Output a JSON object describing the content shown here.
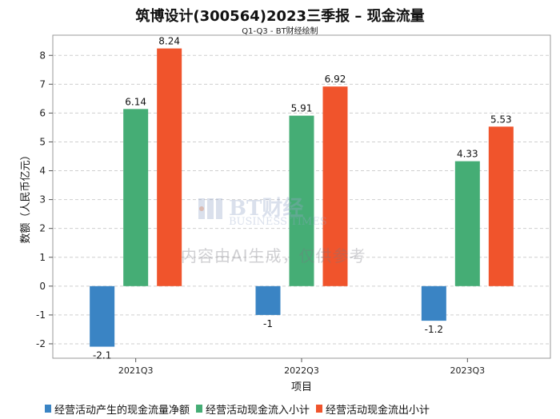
{
  "title": "筑博设计(300564)2023三季报 – 现金流量",
  "subtitle": "Q1-Q3 - BT财经绘制",
  "watermark": {
    "line1": "内容由AI生成，仅供参考",
    "brand": "BT财经",
    "brand_sub": "BUSINESS TIMES"
  },
  "colors": {
    "series1": "#3a84c4",
    "series2": "#45ad75",
    "series3": "#f0542c"
  },
  "chart_data": {
    "type": "bar",
    "title": "筑博设计(300564)2023三季报 – 现金流量",
    "subtitle": "Q1-Q3 - BT财经绘制",
    "xlabel": "项目",
    "ylabel": "数额（人民币亿元）",
    "categories": [
      "2021Q3",
      "2022Q3",
      "2023Q3"
    ],
    "ylim": [
      -2.5,
      8.7
    ],
    "yticks": [
      -2,
      -1,
      0,
      1,
      2,
      3,
      4,
      5,
      6,
      7,
      8
    ],
    "grid": true,
    "legend_position": "bottom",
    "series": [
      {
        "name": "经营活动产生的现金流量净额",
        "values": [
          -2.1,
          -1,
          -1.2
        ],
        "labels": [
          "-2.1",
          "-1",
          "-1.2"
        ]
      },
      {
        "name": "经营活动现金流入小计",
        "values": [
          6.14,
          5.91,
          4.33
        ],
        "labels": [
          "6.14",
          "5.91",
          "4.33"
        ]
      },
      {
        "name": "经营活动现金流出小计",
        "values": [
          8.24,
          6.92,
          5.53
        ],
        "labels": [
          "8.24",
          "6.92",
          "5.53"
        ]
      }
    ]
  }
}
